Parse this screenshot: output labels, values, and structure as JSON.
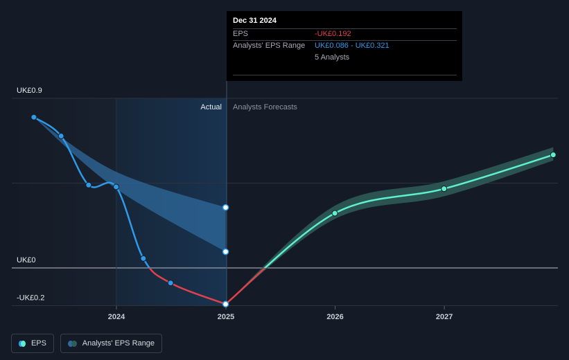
{
  "chart_data": {
    "type": "line",
    "currency": "UK£",
    "y_tick_labels": [
      "UK£0.9",
      "UK£0",
      "-UK£0.2"
    ],
    "x_tick_labels": [
      "2024",
      "2025",
      "2026",
      "2027"
    ],
    "ylim": [
      -0.2,
      0.9
    ],
    "xlim": [
      "2023-01-01",
      "2027-12-31"
    ],
    "actual_label": "Actual",
    "forecast_label": "Analysts Forecasts",
    "series": [
      {
        "name": "EPS",
        "kind": "actual",
        "color": "#2f9be8",
        "points": [
          {
            "x": "2023-03-31",
            "y": 0.8
          },
          {
            "x": "2023-06-30",
            "y": 0.7
          },
          {
            "x": "2023-09-30",
            "y": 0.44
          },
          {
            "x": "2023-12-31",
            "y": 0.43
          },
          {
            "x": "2024-03-31",
            "y": 0.05
          },
          {
            "x": "2024-06-30",
            "y": -0.08
          },
          {
            "x": "2024-12-31",
            "y": -0.192
          }
        ]
      },
      {
        "name": "EPS",
        "kind": "forecast",
        "color": "#5ef0cf",
        "negative_color": "#e0414c",
        "points": [
          {
            "x": "2024-12-31",
            "y": -0.192
          },
          {
            "x": "2025-12-31",
            "y": 0.29
          },
          {
            "x": "2026-12-31",
            "y": 0.42
          },
          {
            "x": "2027-12-31",
            "y": 0.6
          }
        ]
      },
      {
        "name": "Analysts' EPS Range",
        "kind": "range",
        "color": "#2f6a9c",
        "points": [
          {
            "x": "2023-03-31",
            "low": 0.8,
            "high": 0.8
          },
          {
            "x": "2023-12-31",
            "low": 0.42,
            "high": 0.51
          },
          {
            "x": "2024-12-31",
            "low": 0.086,
            "high": 0.321
          }
        ]
      },
      {
        "name": "Analysts' EPS Range (forecast)",
        "kind": "forecast-range",
        "color": "#2e5d5a",
        "points": [
          {
            "x": "2024-12-31",
            "low": -0.192,
            "high": -0.192
          },
          {
            "x": "2025-12-31",
            "low": 0.26,
            "high": 0.33
          },
          {
            "x": "2026-12-31",
            "low": 0.38,
            "high": 0.46
          },
          {
            "x": "2027-12-31",
            "low": 0.57,
            "high": 0.64
          }
        ]
      }
    ],
    "legend": [
      {
        "label": "EPS",
        "colors": [
          "#2f9be8",
          "#5ef0cf"
        ]
      },
      {
        "label": "Analysts' EPS Range",
        "colors": [
          "#2f6a9c",
          "#2e5d5a"
        ]
      }
    ],
    "legend_position": "bottom-left",
    "grid": true
  },
  "tooltip": {
    "date": "Dec 31 2024",
    "eps_label": "EPS",
    "eps_value": "-UK£0.192",
    "eps_color": "#e0414c",
    "range_label": "Analysts' EPS Range",
    "range_value": "UK£0.086 - UK£0.321",
    "range_color": "#2f9be8",
    "analysts": "5 Analysts"
  }
}
